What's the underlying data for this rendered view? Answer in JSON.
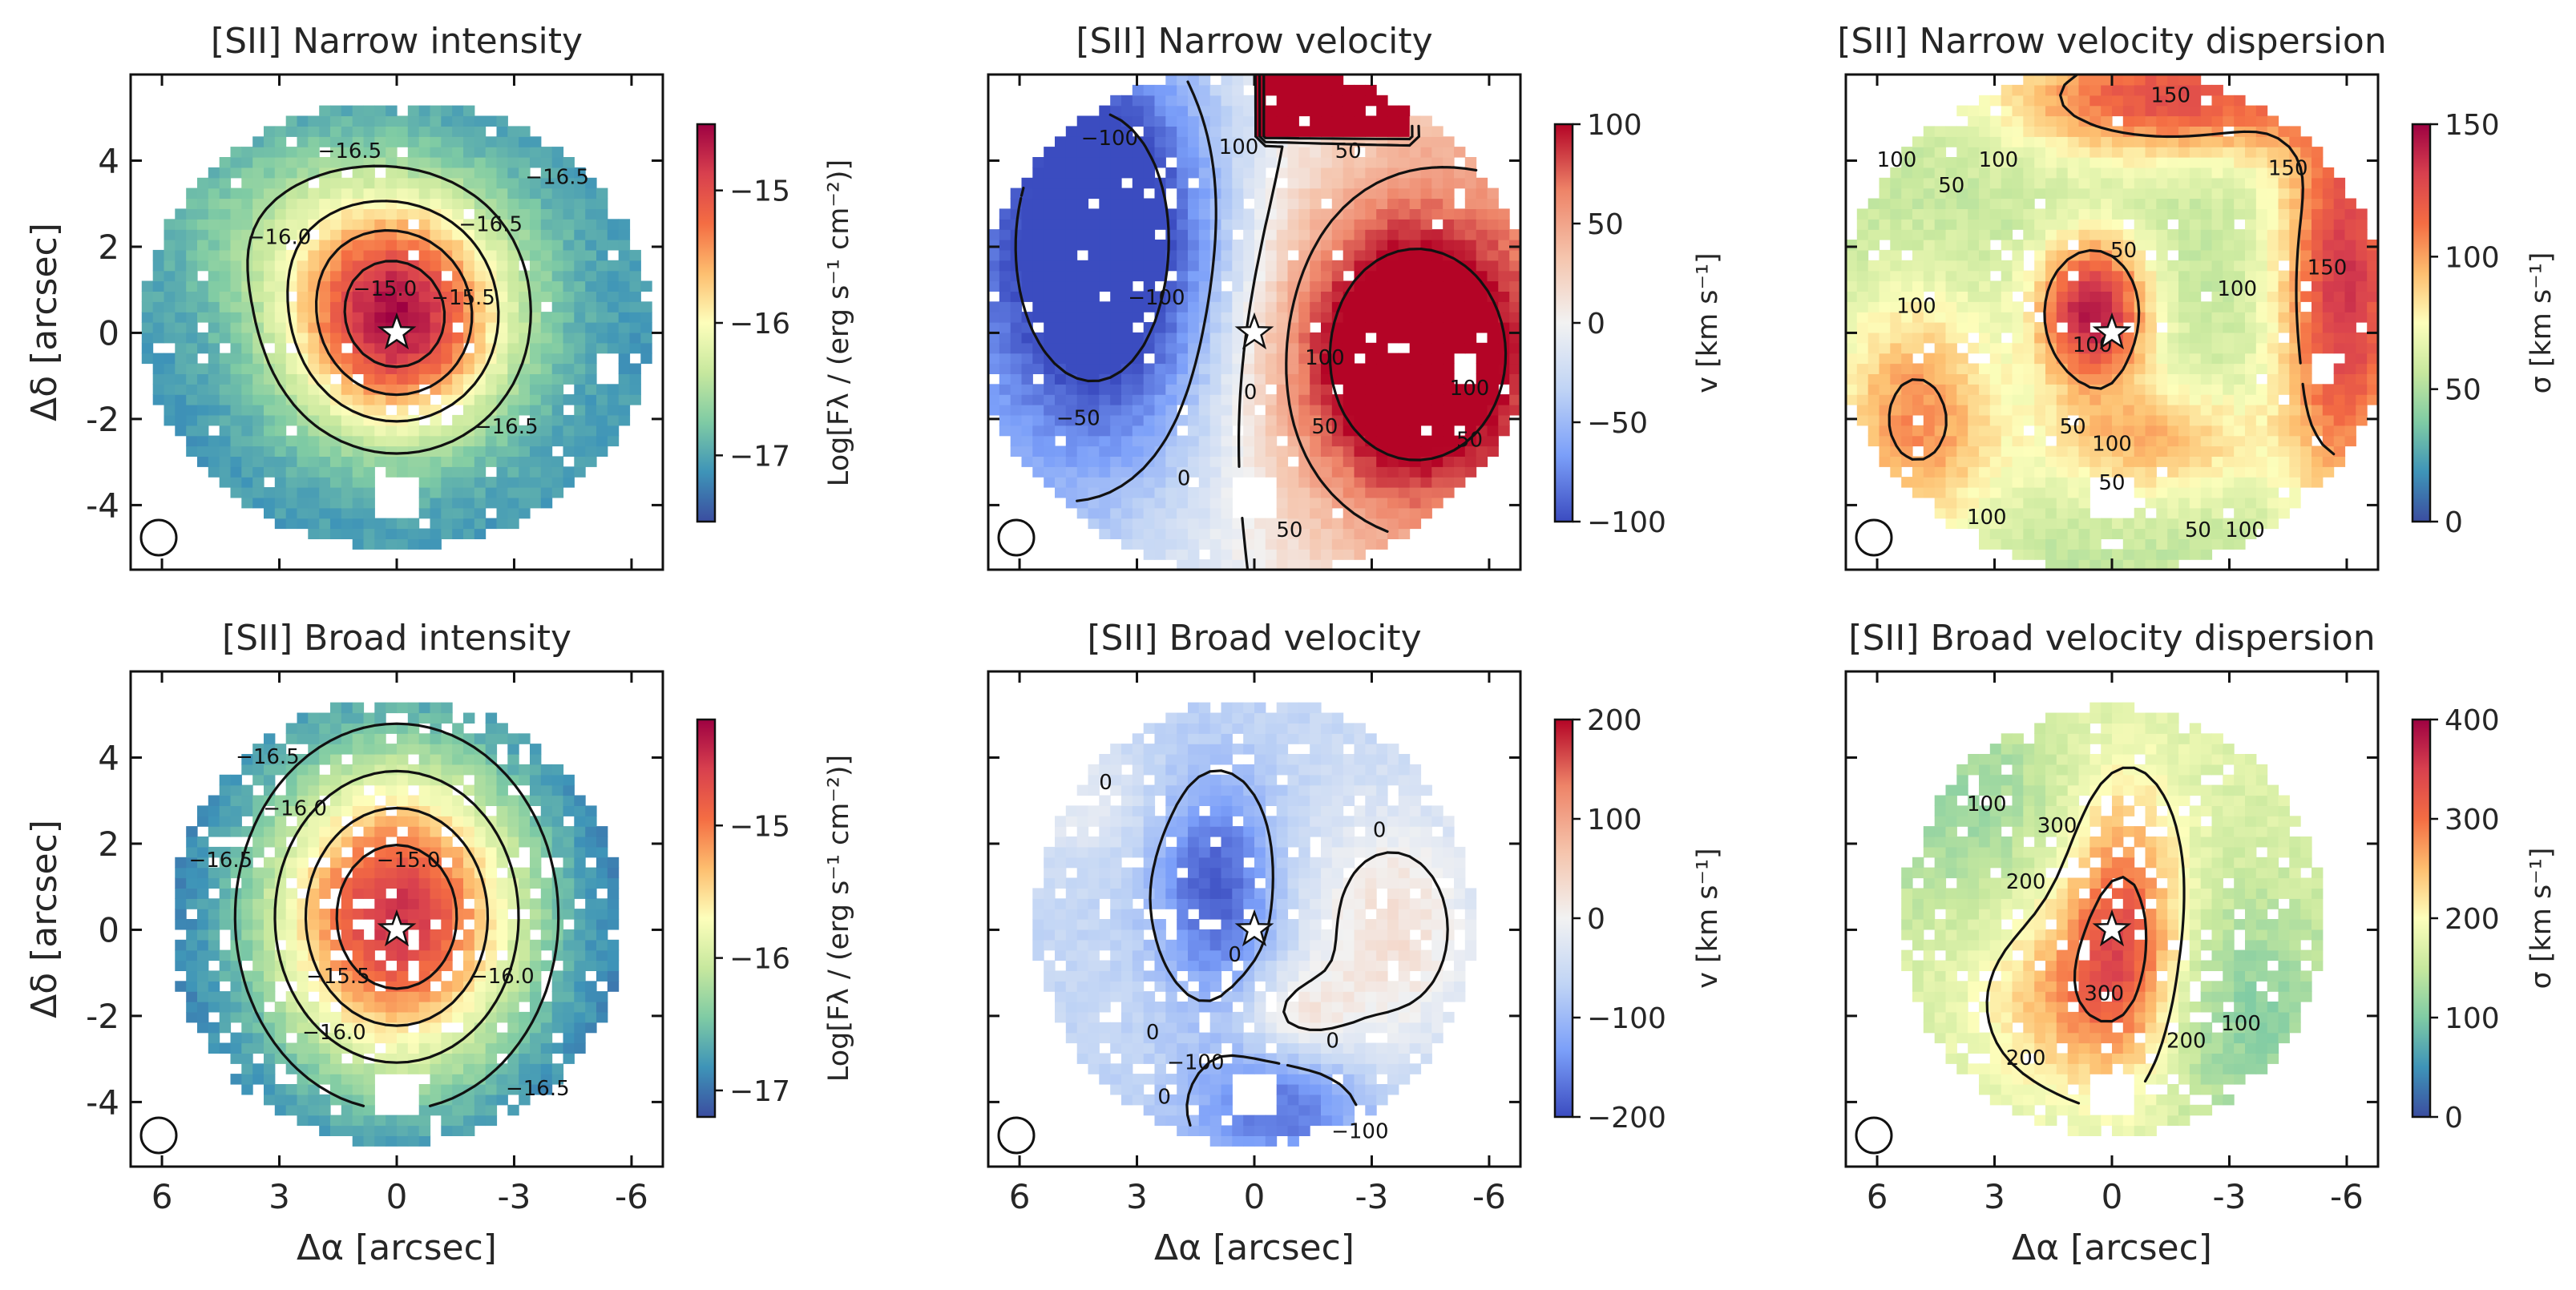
{
  "figure": {
    "x_axis_label": "Δα [arcsec]",
    "y_axis_label": "Δδ [arcsec]",
    "x_ticks": [
      "6",
      "3",
      "0",
      "-3",
      "-6"
    ],
    "y_ticks": [
      "4",
      "2",
      "0",
      "-2",
      "-4"
    ],
    "colors": {
      "spectral": [
        "#3b4da0",
        "#3e94b8",
        "#7fcba4",
        "#c7e89e",
        "#fdfebb",
        "#fdbe6f",
        "#f46d43",
        "#d8404e",
        "#9e0142"
      ],
      "coolwarm": [
        "#3b4cc0",
        "#7b9ff9",
        "#c0d4f5",
        "#f2f2f2",
        "#f5c4ac",
        "#ee8468",
        "#b40426"
      ]
    }
  },
  "chart_data": [
    {
      "id": "p1",
      "type": "heatmap",
      "title": "[SII] Narrow intensity",
      "cmap": "spectral",
      "vmin": -17.5,
      "vmax": -14.5,
      "colorbar_label": "Log[Fλ / (erg s⁻¹ cm⁻²)]",
      "colorbar_ticks": [
        -15,
        -16,
        -17
      ],
      "colorbar_tick_labels": [
        "−15",
        "−16",
        "−17"
      ],
      "xlim": [
        6.8,
        -6.8
      ],
      "ylim": [
        -5.5,
        6.0
      ],
      "contour_levels": [
        -16.5,
        -16.0,
        -15.5,
        -15.0
      ],
      "contour_labels": [
        {
          "text": "−16.5",
          "x": 1.2,
          "y": 4.2
        },
        {
          "text": "−16.0",
          "x": 3.0,
          "y": 2.2
        },
        {
          "text": "−15.0",
          "x": 0.3,
          "y": 1.0
        },
        {
          "text": "−15.5",
          "x": -1.7,
          "y": 0.8
        },
        {
          "text": "−16.5",
          "x": -2.4,
          "y": 2.5
        },
        {
          "text": "−16.5",
          "x": -4.1,
          "y": 3.6
        },
        {
          "text": "−16.5",
          "x": -2.8,
          "y": -2.2
        }
      ],
      "nucleus_x": 0,
      "nucleus_y": 0
    },
    {
      "id": "p2",
      "type": "heatmap",
      "title": "[SII] Narrow velocity",
      "cmap": "coolwarm",
      "vmin": -100,
      "vmax": 100,
      "colorbar_label": "v [km s⁻¹]",
      "colorbar_ticks": [
        100,
        50,
        0,
        -50,
        -100
      ],
      "colorbar_tick_labels": [
        "100",
        "50",
        "0",
        "−50",
        "−100"
      ],
      "xlim": [
        6.8,
        -6.8
      ],
      "ylim": [
        -5.5,
        6.0
      ],
      "contour_levels": [
        -100,
        -50,
        0,
        50,
        100
      ],
      "contour_labels": [
        {
          "text": "−100",
          "x": 3.7,
          "y": 4.5
        },
        {
          "text": "100",
          "x": 0.4,
          "y": 4.3
        },
        {
          "text": "−100",
          "x": 2.5,
          "y": 0.8
        },
        {
          "text": "−50",
          "x": 4.5,
          "y": -2.0
        },
        {
          "text": "0",
          "x": 1.8,
          "y": -3.4
        },
        {
          "text": "0",
          "x": 0.1,
          "y": -1.4
        },
        {
          "text": "50",
          "x": -1.8,
          "y": -2.2
        },
        {
          "text": "100",
          "x": -1.8,
          "y": -0.6
        },
        {
          "text": "100",
          "x": -5.5,
          "y": -1.3
        },
        {
          "text": "50",
          "x": -5.5,
          "y": -2.5
        },
        {
          "text": "50",
          "x": -0.9,
          "y": -4.6
        },
        {
          "text": "50",
          "x": -2.4,
          "y": 4.2
        }
      ],
      "nucleus_x": 0,
      "nucleus_y": 0
    },
    {
      "id": "p3",
      "type": "heatmap",
      "title": "[SII] Narrow velocity dispersion",
      "cmap": "spectral",
      "vmin": 0,
      "vmax": 150,
      "colorbar_label": "σ [km s⁻¹]",
      "colorbar_ticks": [
        150,
        100,
        50,
        0
      ],
      "colorbar_tick_labels": [
        "150",
        "100",
        "50",
        "0"
      ],
      "xlim": [
        6.8,
        -6.8
      ],
      "ylim": [
        -5.5,
        6.0
      ],
      "contour_levels": [
        50,
        100,
        150
      ],
      "contour_labels": [
        {
          "text": "100",
          "x": 5.5,
          "y": 4.0
        },
        {
          "text": "50",
          "x": 4.1,
          "y": 3.4
        },
        {
          "text": "100",
          "x": 2.9,
          "y": 4.0
        },
        {
          "text": "150",
          "x": -1.5,
          "y": 5.5
        },
        {
          "text": "50",
          "x": -0.3,
          "y": 1.9
        },
        {
          "text": "100",
          "x": 5.0,
          "y": 0.6
        },
        {
          "text": "100",
          "x": 0.5,
          "y": -0.3
        },
        {
          "text": "100",
          "x": -3.2,
          "y": 1.0
        },
        {
          "text": "150",
          "x": -5.5,
          "y": 1.5
        },
        {
          "text": "50",
          "x": 1.0,
          "y": -2.2
        },
        {
          "text": "100",
          "x": 0.0,
          "y": -2.6
        },
        {
          "text": "50",
          "x": 0.0,
          "y": -3.5
        },
        {
          "text": "50",
          "x": -2.2,
          "y": -4.6
        },
        {
          "text": "100",
          "x": -3.4,
          "y": -4.6
        },
        {
          "text": "100",
          "x": 3.2,
          "y": -4.3
        },
        {
          "text": "150",
          "x": -4.5,
          "y": 3.8
        }
      ],
      "nucleus_x": 0,
      "nucleus_y": 0
    },
    {
      "id": "p4",
      "type": "heatmap",
      "title": "[SII] Broad intensity",
      "cmap": "spectral",
      "vmin": -17.2,
      "vmax": -14.2,
      "colorbar_label": "Log[Fλ / (erg s⁻¹ cm⁻²)]",
      "colorbar_ticks": [
        -15,
        -16,
        -17
      ],
      "colorbar_tick_labels": [
        "−15",
        "−16",
        "−17"
      ],
      "xlim": [
        6.8,
        -6.8
      ],
      "ylim": [
        -5.5,
        6.0
      ],
      "contour_levels": [
        -16.5,
        -16.0,
        -15.5,
        -15.0
      ],
      "contour_labels": [
        {
          "text": "−16.5",
          "x": 3.3,
          "y": 4.0
        },
        {
          "text": "−16.0",
          "x": 2.6,
          "y": 2.8
        },
        {
          "text": "−16.5",
          "x": 4.5,
          "y": 1.6
        },
        {
          "text": "−15.0",
          "x": -0.3,
          "y": 1.6
        },
        {
          "text": "−15.5",
          "x": 1.5,
          "y": -1.1
        },
        {
          "text": "−16.0",
          "x": 1.6,
          "y": -2.4
        },
        {
          "text": "−16.0",
          "x": -2.7,
          "y": -1.1
        },
        {
          "text": "−16.5",
          "x": -3.6,
          "y": -3.7
        }
      ],
      "nucleus_x": 0,
      "nucleus_y": 0
    },
    {
      "id": "p5",
      "type": "heatmap",
      "title": "[SII] Broad velocity",
      "cmap": "coolwarm",
      "vmin": -200,
      "vmax": 200,
      "colorbar_label": "v [km s⁻¹]",
      "colorbar_ticks": [
        200,
        100,
        0,
        -100,
        -200
      ],
      "colorbar_tick_labels": [
        "200",
        "100",
        "0",
        "−100",
        "−200"
      ],
      "xlim": [
        6.8,
        -6.8
      ],
      "ylim": [
        -5.5,
        6.0
      ],
      "contour_levels": [
        -100,
        0
      ],
      "contour_labels": [
        {
          "text": "0",
          "x": 3.8,
          "y": 3.4
        },
        {
          "text": "0",
          "x": -3.2,
          "y": 2.3
        },
        {
          "text": "0",
          "x": 0.5,
          "y": -0.6
        },
        {
          "text": "0",
          "x": -2.0,
          "y": -2.6
        },
        {
          "text": "0",
          "x": 2.6,
          "y": -2.4
        },
        {
          "text": "−100",
          "x": 1.5,
          "y": -3.1
        },
        {
          "text": "0",
          "x": 2.3,
          "y": -3.9
        },
        {
          "text": "−100",
          "x": -2.7,
          "y": -4.7
        }
      ],
      "nucleus_x": 0,
      "nucleus_y": 0
    },
    {
      "id": "p6",
      "type": "heatmap",
      "title": "[SII] Broad velocity dispersion",
      "cmap": "spectral",
      "vmin": 0,
      "vmax": 400,
      "colorbar_label": "σ [km s⁻¹]",
      "colorbar_ticks": [
        400,
        300,
        200,
        100,
        0
      ],
      "colorbar_tick_labels": [
        "400",
        "300",
        "200",
        "100",
        "0"
      ],
      "xlim": [
        6.8,
        -6.8
      ],
      "ylim": [
        -5.5,
        6.0
      ],
      "contour_levels": [
        100,
        200,
        300
      ],
      "contour_labels": [
        {
          "text": "100",
          "x": 3.2,
          "y": 2.9
        },
        {
          "text": "300",
          "x": 1.4,
          "y": 2.4
        },
        {
          "text": "200",
          "x": 2.2,
          "y": 1.1
        },
        {
          "text": "300",
          "x": 0.2,
          "y": -1.5
        },
        {
          "text": "200",
          "x": 2.2,
          "y": -3.0
        },
        {
          "text": "200",
          "x": -1.9,
          "y": -2.6
        },
        {
          "text": "100",
          "x": -3.3,
          "y": -2.2
        }
      ],
      "nucleus_x": 0,
      "nucleus_y": 0
    }
  ]
}
